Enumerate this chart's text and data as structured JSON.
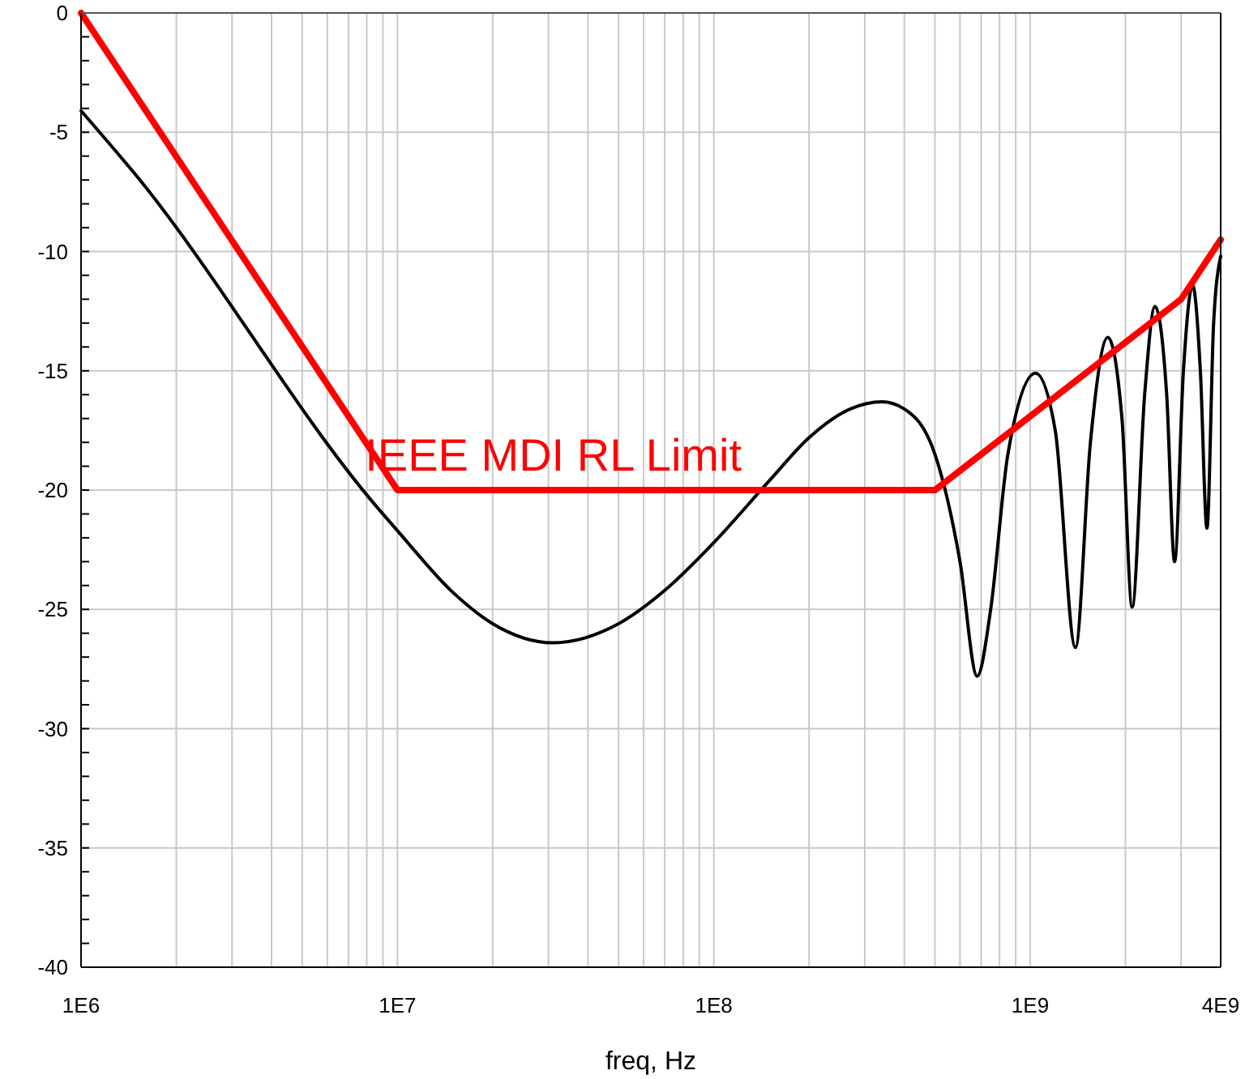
{
  "chart_data": {
    "type": "line",
    "xlabel": "freq, Hz",
    "log": "x",
    "grid": true,
    "line_style": "solid",
    "xlim": [
      1000000,
      4000000000
    ],
    "ylim": [
      -40,
      0
    ],
    "xticks": [
      {
        "value": 1000000,
        "label": "1E6"
      },
      {
        "value": 10000000,
        "label": "1E7"
      },
      {
        "value": 100000000,
        "label": "1E8"
      },
      {
        "value": 1000000000,
        "label": "1E9"
      },
      {
        "value": 4000000000,
        "label": "4E9"
      }
    ],
    "yticks": [
      -40,
      -35,
      -30,
      -25,
      -20,
      -15,
      -10,
      -5,
      0
    ],
    "series": [
      {
        "color": "#000000",
        "x": [
          1000000,
          1470000,
          8600000,
          10000000,
          15000000,
          20000000,
          31000000,
          50000000,
          70000000,
          100000000,
          150000000,
          200000000,
          270000000,
          340000000,
          400000000,
          500000000,
          600000000,
          680000000,
          750000000,
          850000000,
          1040000000,
          1200000000,
          1390000000,
          1550000000,
          1760000000,
          1950000000,
          2100000000,
          2300000000,
          2480000000,
          2700000000,
          2860000000,
          3050000000,
          3260000000,
          3450000000,
          3620000000,
          3800000000,
          4000000000
        ],
        "values": [
          -4.1,
          -6.7,
          -20.7,
          -21.7,
          -24.3,
          -25.6,
          -26.4,
          -25.6,
          -24.2,
          -22.2,
          -19.6,
          -17.8,
          -16.6,
          -16.3,
          -16.6,
          -18.5,
          -23,
          -27.8,
          -25,
          -18.5,
          -15.1,
          -17.5,
          -26.6,
          -18,
          -13.6,
          -17,
          -24.9,
          -16,
          -12.3,
          -16,
          -23,
          -15,
          -11.4,
          -15,
          -21.6,
          -13,
          -10.2
        ]
      },
      {
        "name": "IEEE MDI RL Limit",
        "color": "#ff0000",
        "x": [
          1000000,
          10000000,
          500000000,
          3000000000,
          4000000000
        ],
        "values": [
          0,
          -20,
          -20,
          -12,
          -9.5
        ]
      }
    ]
  }
}
